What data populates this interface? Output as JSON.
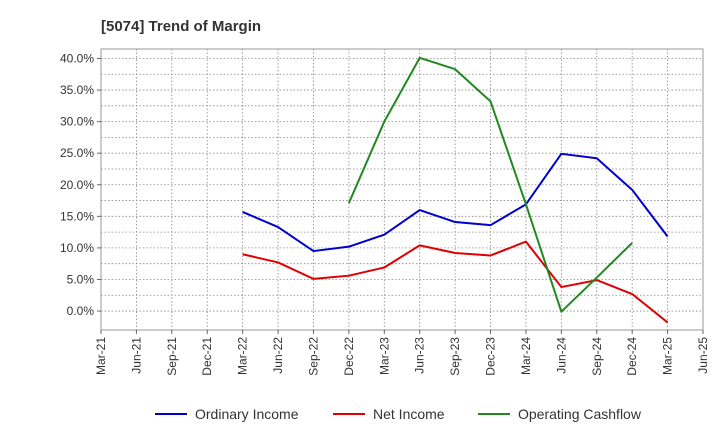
{
  "chart_data": {
    "type": "line",
    "title": "[5074]  Trend of Margin",
    "xlabel": "",
    "ylabel": "",
    "categories": [
      "Mar-21",
      "Jun-21",
      "Sep-21",
      "Dec-21",
      "Mar-22",
      "Jun-22",
      "Sep-22",
      "Dec-22",
      "Mar-23",
      "Jun-23",
      "Sep-23",
      "Dec-23",
      "Mar-24",
      "Jun-24",
      "Sep-24",
      "Dec-24",
      "Mar-25",
      "Jun-25"
    ],
    "ylim": [
      -3.0,
      41.5
    ],
    "yticks": [
      0,
      5,
      10,
      15,
      20,
      25,
      30,
      35,
      40
    ],
    "ytick_labels": [
      "0.0%",
      "5.0%",
      "10.0%",
      "15.0%",
      "20.0%",
      "25.0%",
      "30.0%",
      "35.0%",
      "40.0%"
    ],
    "grid": true,
    "legend_position": "bottom",
    "series": [
      {
        "name": "Ordinary Income",
        "color": "#0000cc",
        "values": [
          null,
          null,
          null,
          null,
          15.7,
          13.3,
          9.5,
          10.2,
          12.1,
          16.0,
          14.1,
          13.6,
          16.9,
          24.9,
          24.2,
          19.2,
          11.8,
          null
        ]
      },
      {
        "name": "Net Income",
        "color": "#e00000",
        "values": [
          null,
          null,
          null,
          null,
          9.0,
          7.7,
          5.1,
          5.6,
          6.9,
          10.4,
          9.2,
          8.8,
          11.0,
          3.8,
          4.9,
          2.7,
          -1.8,
          null
        ]
      },
      {
        "name": "Operating Cashflow",
        "color": "#228822",
        "values": [
          null,
          null,
          null,
          null,
          null,
          null,
          null,
          17.1,
          30.0,
          40.1,
          38.3,
          33.2,
          16.9,
          -0.1,
          5.3,
          10.8,
          null,
          null
        ]
      }
    ]
  }
}
